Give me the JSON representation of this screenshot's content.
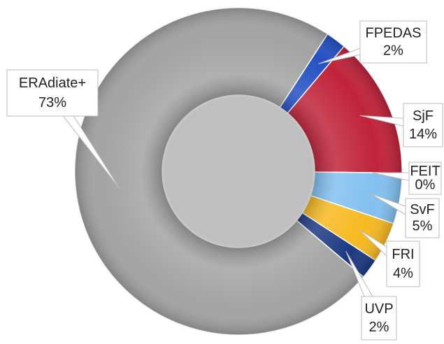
{
  "chart_data": {
    "type": "donut",
    "categories": [
      "FPEDAS",
      "SjF",
      "FEIT",
      "SvF",
      "FRI",
      "UVP",
      "ERAdiate+"
    ],
    "values": [
      2,
      14,
      0,
      5,
      4,
      2,
      73
    ],
    "value_labels": [
      "2%",
      "14%",
      "0%",
      "5%",
      "4%",
      "2%",
      "73%"
    ],
    "colors": [
      "#2450c4",
      "#c0233a",
      "#e8e8e8",
      "#82c0f0",
      "#f6b920",
      "#1c3a82",
      "#a3a3a3"
    ]
  }
}
